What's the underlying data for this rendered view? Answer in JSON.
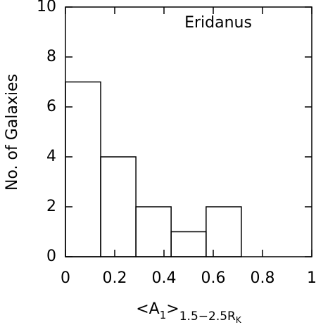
{
  "chart_data": {
    "type": "histogram",
    "annotation": "Eridanus",
    "ylabel": "No. of Galaxies",
    "xlabel": [
      "<A",
      "1",
      ">",
      "1.5−2.5R",
      "K"
    ],
    "bins": [
      0,
      0.143,
      0.286,
      0.429,
      0.571,
      0.714
    ],
    "counts": [
      7,
      4,
      2,
      1,
      2
    ],
    "color": "#000000",
    "xlim": [
      0,
      1
    ],
    "xticks": [
      0,
      0.2,
      0.4,
      0.6,
      0.8,
      1
    ],
    "ylim": [
      0,
      10
    ],
    "yticks": [
      0,
      2,
      4,
      6,
      8,
      10
    ]
  }
}
